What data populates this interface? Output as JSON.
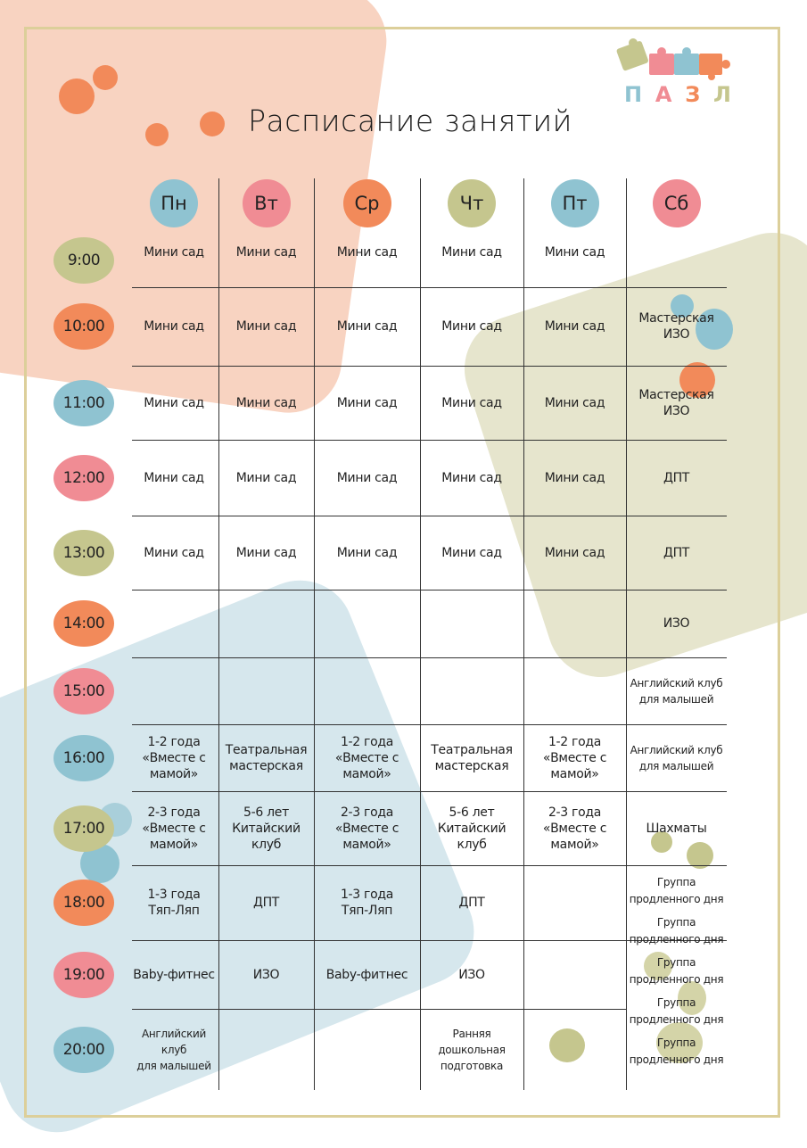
{
  "title": "Расписание занятий",
  "logo": {
    "text": [
      "П",
      "А",
      "З",
      "Л"
    ],
    "colors": [
      "#8fc3d1",
      "#f08c94",
      "#f28a5a",
      "#c5c68e"
    ]
  },
  "colors": {
    "blue": "#8fc3d1",
    "pink": "#f08c94",
    "orange": "#f28a5a",
    "olive": "#c5c68e",
    "frame": "#dccf9a"
  },
  "days": [
    {
      "label": "Пн",
      "color": "blue"
    },
    {
      "label": "Вт",
      "color": "pink"
    },
    {
      "label": "Ср",
      "color": "orange"
    },
    {
      "label": "Чт",
      "color": "olive"
    },
    {
      "label": "Пт",
      "color": "blue"
    },
    {
      "label": "Сб",
      "color": "pink"
    }
  ],
  "times": [
    {
      "label": "9:00",
      "color": "olive"
    },
    {
      "label": "10:00",
      "color": "orange"
    },
    {
      "label": "11:00",
      "color": "blue"
    },
    {
      "label": "12:00",
      "color": "pink"
    },
    {
      "label": "13:00",
      "color": "olive"
    },
    {
      "label": "14:00",
      "color": "orange"
    },
    {
      "label": "15:00",
      "color": "pink"
    },
    {
      "label": "16:00",
      "color": "blue"
    },
    {
      "label": "17:00",
      "color": "olive"
    },
    {
      "label": "18:00",
      "color": "orange"
    },
    {
      "label": "19:00",
      "color": "pink"
    },
    {
      "label": "20:00",
      "color": "blue"
    }
  ],
  "schedule": [
    [
      [
        "Мини сад"
      ],
      [
        "Мини сад"
      ],
      [
        "Мини сад"
      ],
      [
        "Мини сад"
      ],
      [
        "Мини сад"
      ],
      []
    ],
    [
      [
        "Мини сад"
      ],
      [
        "Мини сад"
      ],
      [
        "Мини сад"
      ],
      [
        "Мини сад"
      ],
      [
        "Мини сад"
      ],
      [
        "Мастерская",
        "ИЗО"
      ]
    ],
    [
      [
        "Мини сад"
      ],
      [
        "Мини сад"
      ],
      [
        "Мини сад"
      ],
      [
        "Мини сад"
      ],
      [
        "Мини сад"
      ],
      [
        "Мастерская",
        "ИЗО"
      ]
    ],
    [
      [
        "Мини сад"
      ],
      [
        "Мини сад"
      ],
      [
        "Мини сад"
      ],
      [
        "Мини сад"
      ],
      [
        "Мини сад"
      ],
      [
        "ДПТ"
      ]
    ],
    [
      [
        "Мини сад"
      ],
      [
        "Мини сад"
      ],
      [
        "Мини сад"
      ],
      [
        "Мини сад"
      ],
      [
        "Мини сад"
      ],
      [
        "ДПТ"
      ]
    ],
    [
      [],
      [],
      [],
      [],
      [],
      [
        "ИЗО"
      ]
    ],
    [
      [],
      [],
      [],
      [],
      [],
      [
        "Английский клуб",
        "для малышей"
      ]
    ],
    [
      [
        "1-2 года",
        "«Вместе с",
        "мамой»"
      ],
      [
        "Театральная",
        "мастерская"
      ],
      [
        "1-2 года",
        "«Вместе с",
        "мамой»"
      ],
      [
        "Театральная",
        "мастерская"
      ],
      [
        "1-2 года",
        "«Вместе с",
        "мамой»"
      ],
      [
        "Английский клуб",
        "для малышей"
      ]
    ],
    [
      [
        "2-3 года",
        "«Вместе с",
        "мамой»"
      ],
      [
        "5-6 лет",
        "Китайский",
        "клуб"
      ],
      [
        "2-3 года",
        "«Вместе с",
        "мамой»"
      ],
      [
        "5-6 лет",
        "Китайский",
        "клуб"
      ],
      [
        "2-3 года",
        "«Вместе с",
        "мамой»"
      ],
      [
        "Шахматы"
      ]
    ],
    [
      [
        "1-3 года",
        "Тяп-Ляп"
      ],
      [
        "ДПТ"
      ],
      [
        "1-3 года",
        "Тяп-Ляп"
      ],
      [
        "ДПТ"
      ],
      [],
      null
    ],
    [
      [
        "Baby-фитнес"
      ],
      [
        "ИЗО"
      ],
      [
        "Baby-фитнес"
      ],
      [
        "ИЗО"
      ],
      [],
      null
    ],
    [
      [
        "Английский клуб",
        "для малышей"
      ],
      [],
      [],
      [
        "Ранняя дошкольная",
        "подготовка"
      ],
      [],
      null
    ]
  ],
  "saturday_evening": [
    "Группа",
    "продленного дня",
    "Группа",
    "продленного дня",
    "Группа",
    "продленного дня",
    "Группа",
    "продленного дня",
    "Группа",
    "продленного дня"
  ]
}
